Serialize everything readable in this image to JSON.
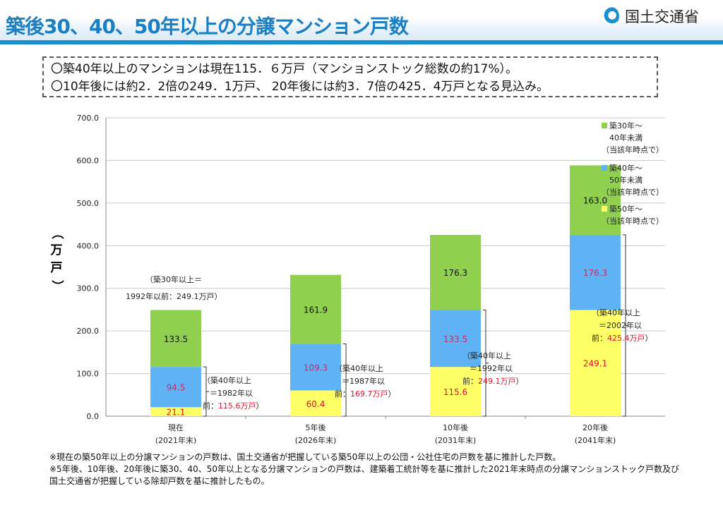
{
  "header": {
    "title": "築後30、40、50年以上の分譲マンション戸数",
    "org": "国土交通省"
  },
  "summary": [
    "〇築40年以上のマンションは現在115．６万戸（マンションストック総数の約17%）。",
    "〇10年後には約2．2倍の249．1万戸、 20年後には約3．7倍の425．4万戸となる見込み。"
  ],
  "chart_data": {
    "type": "bar",
    "stacked": true,
    "categories": [
      [
        "現在",
        "(2021年末)"
      ],
      [
        "5年後",
        "(2026年末)"
      ],
      [
        "10年後",
        "(2031年末)"
      ],
      [
        "20年後",
        "(2041年末)"
      ]
    ],
    "series": [
      {
        "name": "築50年～",
        "sub": "（当該年時点で）",
        "color": "#ffff66",
        "label_color": "#e0102a",
        "values": [
          21.1,
          60.4,
          115.6,
          249.1
        ]
      },
      {
        "name": "築40年～",
        "name2": "50年未満",
        "sub": "（当該年時点で）",
        "color": "#5fb3f5",
        "label_color": "#c0306e",
        "values": [
          94.5,
          109.3,
          133.5,
          176.3
        ]
      },
      {
        "name": "築30年～",
        "name2": "40年未満",
        "sub": "（当該年時点で）",
        "color": "#8fd14f",
        "label_color": "#111111",
        "values": [
          133.5,
          161.9,
          176.3,
          163.0
        ]
      }
    ],
    "ylabel": [
      "（",
      "万",
      "戸",
      "）"
    ],
    "ylim": [
      0,
      700
    ],
    "yticks": [
      "0.0",
      "100.0",
      "200.0",
      "300.0",
      "400.0",
      "500.0",
      "600.0",
      "700.0"
    ],
    "grid": true,
    "legend": "right",
    "annotations": {
      "a30": [
        "（築30年以上＝",
        "1992年以前：249.1万戸）"
      ],
      "a40": [
        {
          "l1": "（築40年以上",
          "l2": "＝1982年以",
          "l3": "前：",
          "v": "115.6万戸",
          "end": "）"
        },
        {
          "l1": "（築40年以上",
          "l2": "＝1987年以",
          "l3": "前：",
          "v": "169.7万戸",
          "end": "）"
        },
        {
          "l1": "（築40年以上",
          "l2": "＝1992年以",
          "l3": "前：",
          "v": "249.1万戸",
          "end": "）"
        },
        {
          "l1": "（築40年以上",
          "l2": "＝2002年以",
          "l3": "前：",
          "v": "425.4万戸",
          "end": "）"
        }
      ]
    }
  },
  "footnotes": [
    "※現在の築50年以上の分譲マンションの戸数は、国土交通省が把握している築50年以上の公団・公社住宅の戸数を基に推計した戸数。",
    "※5年後、10年後、20年後に築30、40、50年以上となる分譲マンションの戸数は、建築着工統計等を基に推計した2021年末時点の分譲マンションストック戸数及び国土交通省が把握している除却戸数を基に推計したもの。"
  ]
}
